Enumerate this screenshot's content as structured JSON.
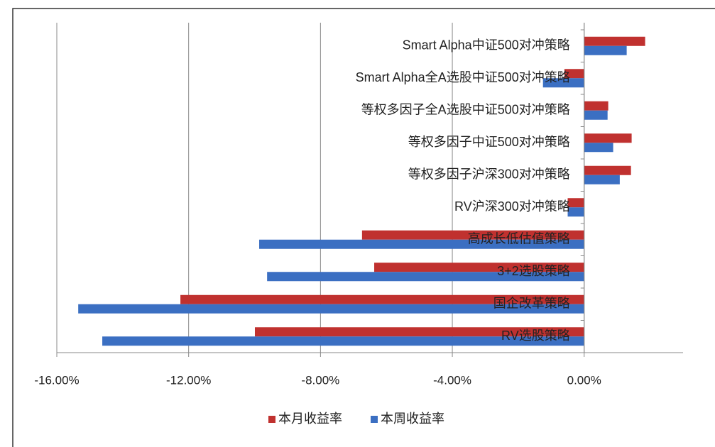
{
  "chart_data": {
    "type": "hbar",
    "categories": [
      "Smart Alpha中证500对冲策略",
      "Smart Alpha全A选股中证500对冲策略",
      "等权多因子全A选股中证500对冲策略",
      "等权多因子中证500对冲策略",
      "等权多因子沪深300对冲策略",
      "RV沪深300对冲策略",
      "高成长低估值策略",
      "3+2选股策略",
      "国企改革策略",
      "RV选股策略"
    ],
    "series": [
      {
        "name": "本月收益率",
        "color": "#c0312f",
        "values": [
          1.85,
          -0.6,
          0.73,
          1.44,
          1.42,
          -0.5,
          -6.74,
          -6.37,
          -12.25,
          -9.99
        ]
      },
      {
        "name": "本周收益率",
        "color": "#3b6fc2",
        "values": [
          1.29,
          -1.25,
          0.71,
          0.88,
          1.08,
          -0.5,
          -9.86,
          -9.62,
          -15.35,
          -14.62
        ]
      }
    ],
    "xlim": [
      -16,
      3
    ],
    "xticks": [
      {
        "value": -16,
        "label": "-16.00%"
      },
      {
        "value": -12,
        "label": "-12.00%"
      },
      {
        "value": -8,
        "label": "-8.00%"
      },
      {
        "value": -4,
        "label": "-4.00%"
      },
      {
        "value": 0,
        "label": "0.00%"
      }
    ],
    "grid": true,
    "legend": "bottom"
  }
}
